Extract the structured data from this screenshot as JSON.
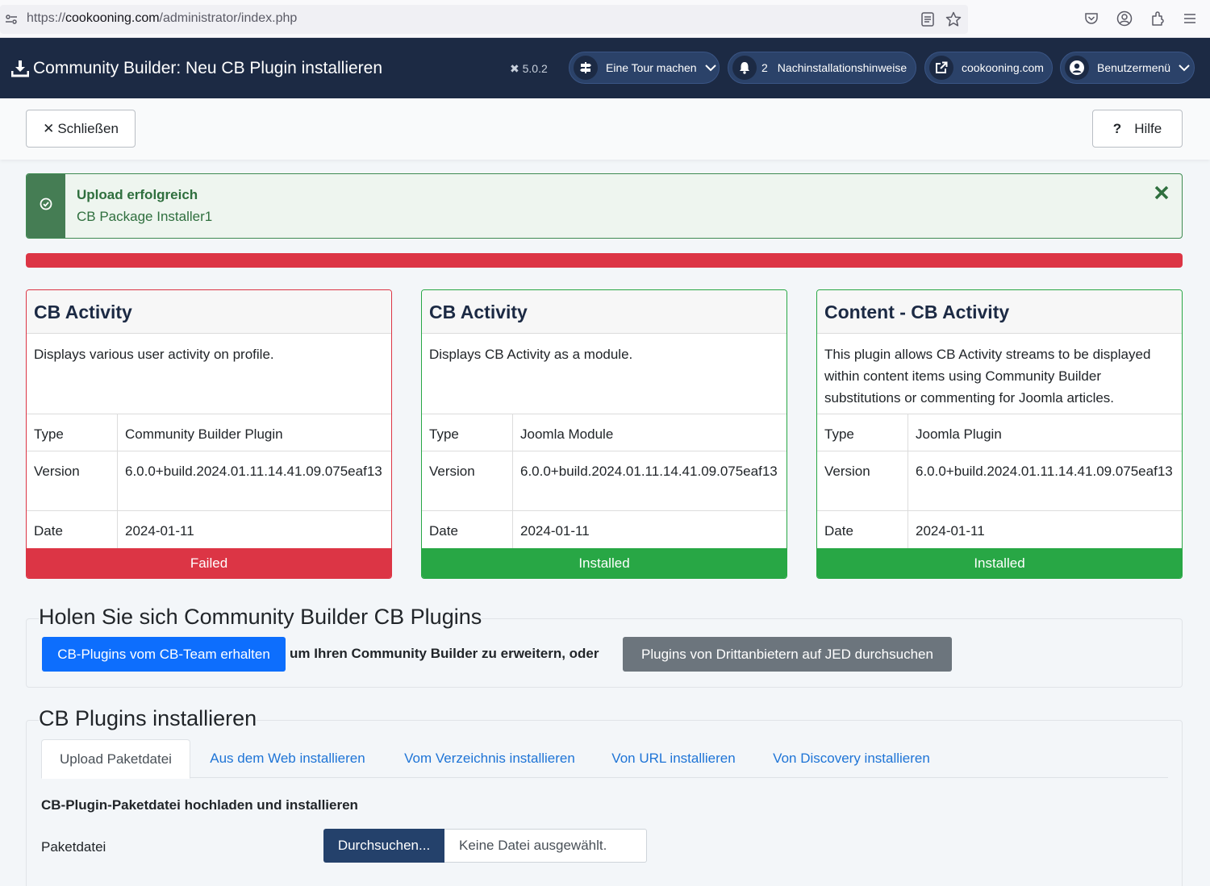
{
  "browser": {
    "url_prefix": "https://",
    "url_host": "cookooning.com",
    "url_path": "/administrator/index.php"
  },
  "header": {
    "title": "Community Builder: Neu CB Plugin installieren",
    "version": "5.0.2",
    "tour_label": "Eine Tour machen",
    "notifications_count": "2",
    "notifications_label": "Nachinstallationshinweise",
    "site_label": "cookooning.com",
    "user_menu_label": "Benutzermenü"
  },
  "toolbar": {
    "close_label": "Schließen",
    "help_label": "Hilfe"
  },
  "alert": {
    "title": "Upload erfolgreich",
    "message": "CB Package Installer1"
  },
  "cards": [
    {
      "title": "CB Activity",
      "description": "Displays various user activity on profile.",
      "type_label": "Type",
      "type": "Community Builder Plugin",
      "version_label": "Version",
      "version": "6.0.0+build.2024.01.11.14.41.09.075eaf13",
      "date_label": "Date",
      "date": "2024-01-11",
      "status": "Failed"
    },
    {
      "title": "CB Activity",
      "description": "Displays CB Activity as a module.",
      "type_label": "Type",
      "type": "Joomla Module",
      "version_label": "Version",
      "version": "6.0.0+build.2024.01.11.14.41.09.075eaf13",
      "date_label": "Date",
      "date": "2024-01-11",
      "status": "Installed"
    },
    {
      "title": "Content - CB Activity",
      "description": "This plugin allows CB Activity streams to be displayed within content items using Community Builder substitutions or commenting for Joomla articles.",
      "type_label": "Type",
      "type": "Joomla Plugin",
      "version_label": "Version",
      "version": "6.0.0+build.2024.01.11.14.41.09.075eaf13",
      "date_label": "Date",
      "date": "2024-01-11",
      "status": "Installed"
    }
  ],
  "get_plugins": {
    "legend": "Holen Sie sich Community Builder CB Plugins",
    "team_button": "CB-Plugins vom CB-Team erhalten",
    "middle_text": "um Ihren Community Builder zu erweitern, oder",
    "jed_button": "Plugins von Drittanbietern auf JED durchsuchen"
  },
  "install": {
    "legend": "CB Plugins installieren",
    "tabs": [
      "Upload Paketdatei",
      "Aus dem Web installieren",
      "Vom Verzeichnis installieren",
      "Von URL installieren",
      "Von Discovery installieren"
    ],
    "heading": "CB-Plugin-Paketdatei hochladen und installieren",
    "field_label": "Paketdatei",
    "browse_button": "Durchsuchen...",
    "no_file_text": "Keine Datei ausgewählt."
  }
}
